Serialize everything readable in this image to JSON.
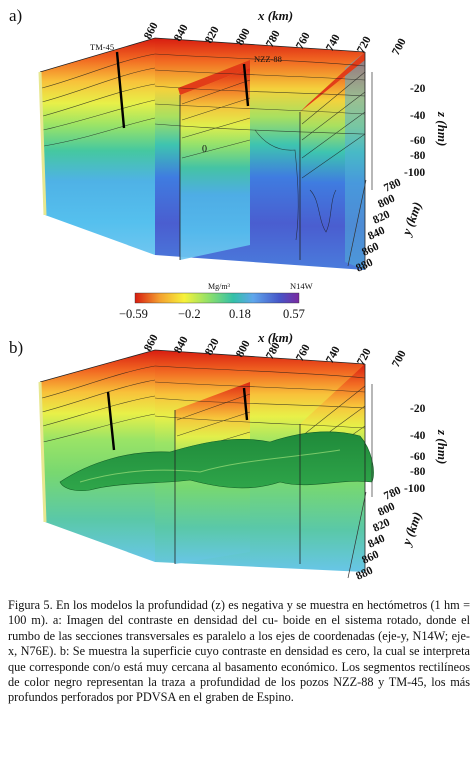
{
  "panel_a": {
    "label": "a)",
    "x_axis_title": "x (km)",
    "x_ticks": [
      "860",
      "840",
      "820",
      "800",
      "780",
      "760",
      "740",
      "720",
      "700"
    ],
    "y_axis_title": "y (km)",
    "y_ticks": [
      "780",
      "800",
      "820",
      "840",
      "860",
      "880"
    ],
    "z_axis_title": "z (hm)",
    "z_ticks": [
      "-20",
      "-40",
      "-60",
      "-80",
      "-100"
    ],
    "wells": [
      "TM-45",
      "NZZ-88"
    ],
    "contour_label": "0",
    "direction_label": "N14W",
    "colorbar": {
      "unit": "Mg/m³",
      "ticks": [
        "−0.59",
        "−0.2",
        "0.18",
        "0.57"
      ],
      "colors": [
        "#d81c10",
        "#f4a030",
        "#f7f23a",
        "#8ee06a",
        "#33c0a8",
        "#5fa6ec",
        "#4656c8",
        "#7a2aa0"
      ]
    }
  },
  "panel_b": {
    "label": "b)",
    "x_axis_title": "x (km)",
    "x_ticks": [
      "860",
      "840",
      "820",
      "800",
      "780",
      "760",
      "740",
      "720",
      "700"
    ],
    "y_axis_title": "y (km)",
    "y_ticks": [
      "780",
      "800",
      "820",
      "840",
      "860",
      "880"
    ],
    "z_axis_title": "z (hm)",
    "z_ticks": [
      "-20",
      "-40",
      "-60",
      "-80",
      "-100"
    ]
  },
  "caption": {
    "lines": [
      "Figura 5. En los modelos la profundidad (z) es negativa y se muestra en",
      "hectómetros (1 hm = 100 m). a: Imagen del contraste en densidad del cu-",
      "boide en el sistema rotado, donde el rumbo de las secciones transversales",
      "es paralelo a los ejes de coordenadas (eje-y, N14W; eje-x, N76E). b: Se",
      "muestra la superficie cuyo contraste en densidad es cero, la cual se interpreta",
      "que corresponde con/o está muy cercana al basamento económico. Los",
      "segmentos rectilíneos de color negro representan la traza a profundidad",
      "de los pozos NZZ-88 y TM-45, los más profundos perforados por PDVSA",
      "en el graben de Espino."
    ]
  }
}
